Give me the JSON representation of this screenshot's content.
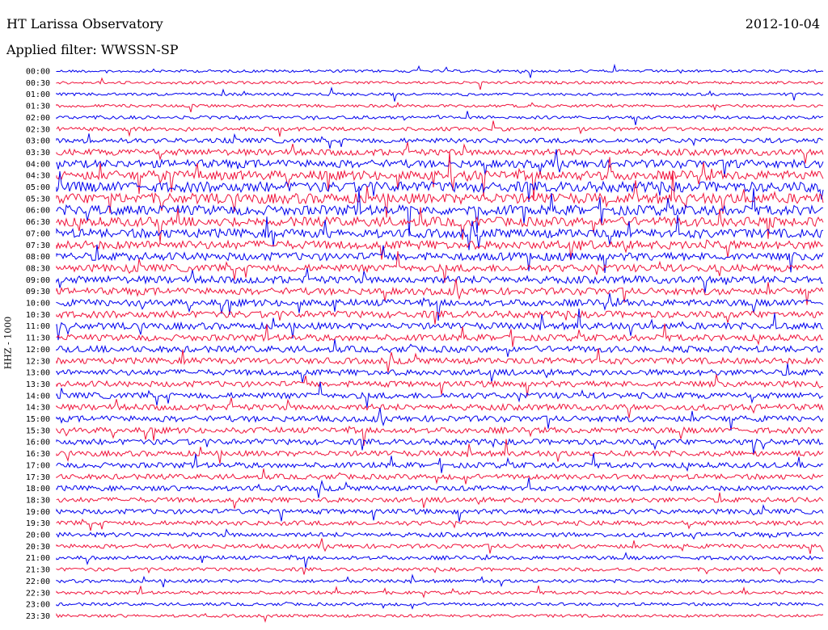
{
  "header": {
    "station": "HT Larissa Observatory",
    "date": "2012-10-04",
    "filter": "Applied filter: WWSSN-SP"
  },
  "chart_data": {
    "type": "line",
    "title": "HT Larissa Observatory",
    "ylabel": "HHZ - 1000",
    "colors": {
      "odd_trace": "#0000ee",
      "even_trace": "#f0143c"
    },
    "time_labels": [
      "00:00",
      "00:30",
      "01:00",
      "01:30",
      "02:00",
      "02:30",
      "03:00",
      "03:30",
      "04:00",
      "04:30",
      "05:00",
      "05:30",
      "06:00",
      "06:30",
      "07:00",
      "07:30",
      "08:00",
      "08:30",
      "09:00",
      "09:30",
      "10:00",
      "10:30",
      "11:00",
      "11:30",
      "12:00",
      "12:30",
      "13:00",
      "13:30",
      "14:00",
      "14:30",
      "15:00",
      "15:30",
      "16:00",
      "16:30",
      "17:00",
      "17:30",
      "18:00",
      "18:30",
      "19:00",
      "19:30",
      "20:00",
      "20:30",
      "21:00",
      "21:30",
      "22:00",
      "22:30",
      "23:00",
      "23:30"
    ],
    "noise_level": [
      0.08,
      0.08,
      0.09,
      0.1,
      0.12,
      0.18,
      0.3,
      0.45,
      0.6,
      0.75,
      0.85,
      0.85,
      0.8,
      0.75,
      0.7,
      0.65,
      0.6,
      0.55,
      0.55,
      0.5,
      0.5,
      0.5,
      0.48,
      0.45,
      0.45,
      0.42,
      0.4,
      0.4,
      0.42,
      0.42,
      0.4,
      0.4,
      0.38,
      0.36,
      0.35,
      0.33,
      0.32,
      0.3,
      0.3,
      0.28,
      0.26,
      0.24,
      0.2,
      0.16,
      0.14,
      0.12,
      0.11,
      0.1
    ],
    "grid": false
  }
}
